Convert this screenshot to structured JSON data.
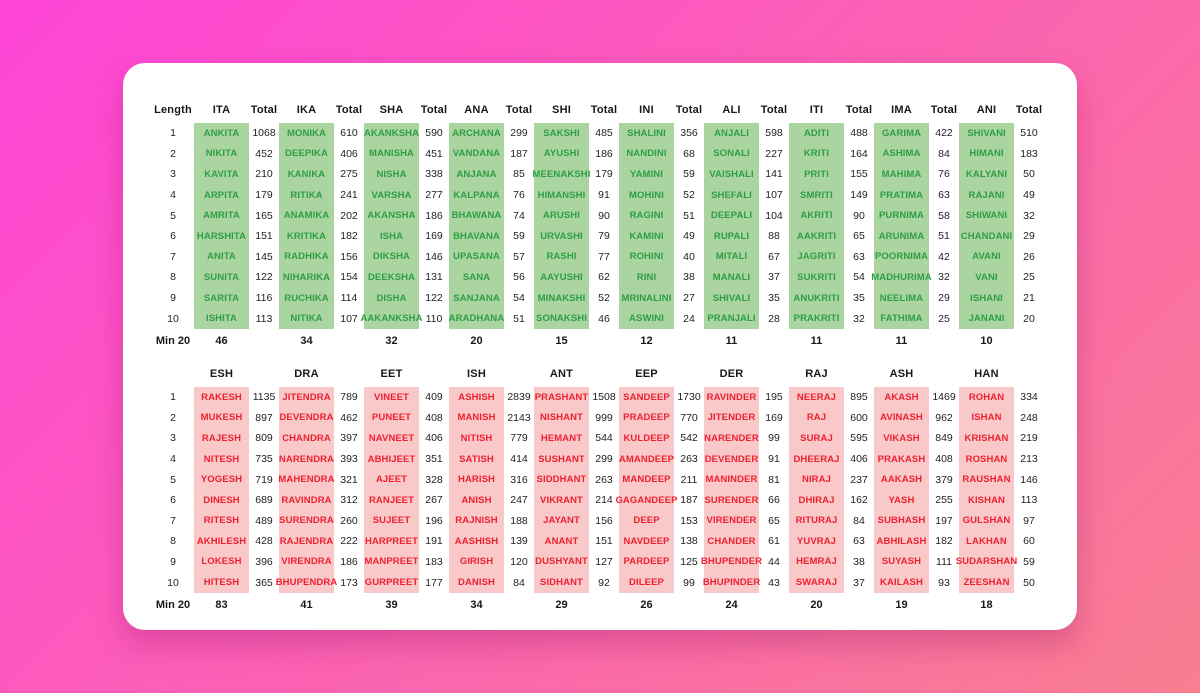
{
  "colors": {
    "background_gradient_start": "#fe44d8",
    "background_gradient_end": "#f97e90",
    "card_background": "#ffffff",
    "female_text": "#2e9e44",
    "female_band": "#aad5a1",
    "male_text": "#ee2130",
    "male_band": "#f9c8c9"
  },
  "labels": {
    "length_header": "Length",
    "total_header": "Total",
    "min_label": "Min 20",
    "row_numbers": [
      "1",
      "2",
      "3",
      "4",
      "5",
      "6",
      "7",
      "8",
      "9",
      "10"
    ]
  },
  "chart_data": [
    {
      "type": "table",
      "suffix_groups": [
        {
          "suffix": "ITA",
          "names": [
            "ANKITA",
            "NIKITA",
            "KAVITA",
            "ARPITA",
            "AMRITA",
            "HARSHITA",
            "ANITA",
            "SUNITA",
            "SARITA",
            "ISHITA"
          ],
          "totals": [
            "1068",
            "452",
            "210",
            "179",
            "165",
            "151",
            "145",
            "122",
            "116",
            "113"
          ],
          "min20": "46"
        },
        {
          "suffix": "IKA",
          "names": [
            "MONIKA",
            "DEEPIKA",
            "KANIKA",
            "RITIKA",
            "ANAMIKA",
            "KRITIKA",
            "RADHIKA",
            "NIHARIKA",
            "RUCHIKA",
            "NITIKA"
          ],
          "totals": [
            "610",
            "406",
            "275",
            "241",
            "202",
            "182",
            "156",
            "154",
            "114",
            "107"
          ],
          "min20": "34"
        },
        {
          "suffix": "SHA",
          "names": [
            "AKANKSHA",
            "MANISHA",
            "NISHA",
            "VARSHA",
            "AKANSHA",
            "ISHA",
            "DIKSHA",
            "DEEKSHA",
            "DISHA",
            "AAKANKSHA"
          ],
          "totals": [
            "590",
            "451",
            "338",
            "277",
            "186",
            "169",
            "146",
            "131",
            "122",
            "110"
          ],
          "min20": "32"
        },
        {
          "suffix": "ANA",
          "names": [
            "ARCHANA",
            "VANDANA",
            "ANJANA",
            "KALPANA",
            "BHAWANA",
            "BHAVANA",
            "UPASANA",
            "SANA",
            "SANJANA",
            "ARADHANA"
          ],
          "totals": [
            "299",
            "187",
            "85",
            "76",
            "74",
            "59",
            "57",
            "56",
            "54",
            "51"
          ],
          "min20": "20"
        },
        {
          "suffix": "SHI",
          "names": [
            "SAKSHI",
            "AYUSHI",
            "MEENAKSHI",
            "HIMANSHI",
            "ARUSHI",
            "URVASHI",
            "RASHI",
            "AAYUSHI",
            "MINAKSHI",
            "SONAKSHI"
          ],
          "totals": [
            "485",
            "186",
            "179",
            "91",
            "90",
            "79",
            "77",
            "62",
            "52",
            "46"
          ],
          "min20": "15"
        },
        {
          "suffix": "INI",
          "names": [
            "SHALINI",
            "NANDINI",
            "YAMINI",
            "MOHINI",
            "RAGINI",
            "KAMINI",
            "ROHINI",
            "RINI",
            "MRINALINI",
            "ASWINI"
          ],
          "totals": [
            "356",
            "68",
            "59",
            "52",
            "51",
            "49",
            "40",
            "38",
            "27",
            "24"
          ],
          "min20": "12"
        },
        {
          "suffix": "ALI",
          "names": [
            "ANJALI",
            "SONALI",
            "VAISHALI",
            "SHEFALI",
            "DEEPALI",
            "RUPALI",
            "MITALI",
            "MANALI",
            "SHIVALI",
            "PRANJALI"
          ],
          "totals": [
            "598",
            "227",
            "141",
            "107",
            "104",
            "88",
            "67",
            "37",
            "35",
            "28"
          ],
          "min20": "11"
        },
        {
          "suffix": "ITI",
          "names": [
            "ADITI",
            "KRITI",
            "PRITI",
            "SMRITI",
            "AKRITI",
            "AAKRITI",
            "JAGRITI",
            "SUKRITI",
            "ANUKRITI",
            "PRAKRITI"
          ],
          "totals": [
            "488",
            "164",
            "155",
            "149",
            "90",
            "65",
            "63",
            "54",
            "35",
            "32"
          ],
          "min20": "11"
        },
        {
          "suffix": "IMA",
          "names": [
            "GARIMA",
            "ASHIMA",
            "MAHIMA",
            "PRATIMA",
            "PURNIMA",
            "ARUNIMA",
            "POORNIMA",
            "MADHURIMA",
            "NEELIMA",
            "FATHIMA"
          ],
          "totals": [
            "422",
            "84",
            "76",
            "63",
            "58",
            "51",
            "42",
            "32",
            "29",
            "25"
          ],
          "min20": "11"
        },
        {
          "suffix": "ANI",
          "names": [
            "SHIVANI",
            "HIMANI",
            "KALYANI",
            "RAJANI",
            "SHIWANI",
            "CHANDANI",
            "AVANI",
            "VANI",
            "ISHANI",
            "JANANI"
          ],
          "totals": [
            "510",
            "183",
            "50",
            "49",
            "32",
            "29",
            "26",
            "25",
            "21",
            "20"
          ],
          "min20": "10"
        }
      ]
    },
    {
      "type": "table",
      "suffix_groups": [
        {
          "suffix": "ESH",
          "names": [
            "RAKESH",
            "MUKESH",
            "RAJESH",
            "NITESH",
            "YOGESH",
            "DINESH",
            "RITESH",
            "AKHILESH",
            "LOKESH",
            "HITESH"
          ],
          "totals": [
            "1135",
            "897",
            "809",
            "735",
            "719",
            "689",
            "489",
            "428",
            "396",
            "365"
          ],
          "min20": "83"
        },
        {
          "suffix": "DRA",
          "names": [
            "JITENDRA",
            "DEVENDRA",
            "CHANDRA",
            "NARENDRA",
            "MAHENDRA",
            "RAVINDRA",
            "SURENDRA",
            "RAJENDRA",
            "VIRENDRA",
            "BHUPENDRA"
          ],
          "totals": [
            "789",
            "462",
            "397",
            "393",
            "321",
            "312",
            "260",
            "222",
            "186",
            "173"
          ],
          "min20": "41"
        },
        {
          "suffix": "EET",
          "names": [
            "VINEET",
            "PUNEET",
            "NAVNEET",
            "ABHIJEET",
            "AJEET",
            "RANJEET",
            "SUJEET",
            "HARPREET",
            "MANPREET",
            "GURPREET"
          ],
          "totals": [
            "409",
            "408",
            "406",
            "351",
            "328",
            "267",
            "196",
            "191",
            "183",
            "177"
          ],
          "min20": "39"
        },
        {
          "suffix": "ISH",
          "names": [
            "ASHISH",
            "MANISH",
            "NITISH",
            "SATISH",
            "HARISH",
            "ANISH",
            "RAJNISH",
            "AASHISH",
            "GIRISH",
            "DANISH"
          ],
          "totals": [
            "2839",
            "2143",
            "779",
            "414",
            "316",
            "247",
            "188",
            "139",
            "120",
            "84"
          ],
          "min20": "34"
        },
        {
          "suffix": "ANT",
          "names": [
            "PRASHANT",
            "NISHANT",
            "HEMANT",
            "SUSHANT",
            "SIDDHANT",
            "VIKRANT",
            "JAYANT",
            "ANANT",
            "DUSHYANT",
            "SIDHANT"
          ],
          "totals": [
            "1508",
            "999",
            "544",
            "299",
            "263",
            "214",
            "156",
            "151",
            "127",
            "92"
          ],
          "min20": "29"
        },
        {
          "suffix": "EEP",
          "names": [
            "SANDEEP",
            "PRADEEP",
            "KULDEEP",
            "AMANDEEP",
            "MANDEEP",
            "GAGANDEEP",
            "DEEP",
            "NAVDEEP",
            "PARDEEP",
            "DILEEP"
          ],
          "totals": [
            "1730",
            "770",
            "542",
            "263",
            "211",
            "187",
            "153",
            "138",
            "125",
            "99"
          ],
          "min20": "26"
        },
        {
          "suffix": "DER",
          "names": [
            "RAVINDER",
            "JITENDER",
            "NARENDER",
            "DEVENDER",
            "MANINDER",
            "SURENDER",
            "VIRENDER",
            "CHANDER",
            "BHUPENDER",
            "BHUPINDER"
          ],
          "totals": [
            "195",
            "169",
            "99",
            "91",
            "81",
            "66",
            "65",
            "61",
            "44",
            "43"
          ],
          "min20": "24"
        },
        {
          "suffix": "RAJ",
          "names": [
            "NEERAJ",
            "RAJ",
            "SURAJ",
            "DHEERAJ",
            "NIRAJ",
            "DHIRAJ",
            "RITURAJ",
            "YUVRAJ",
            "HEMRAJ",
            "SWARAJ"
          ],
          "totals": [
            "895",
            "600",
            "595",
            "406",
            "237",
            "162",
            "84",
            "63",
            "38",
            "37"
          ],
          "min20": "20"
        },
        {
          "suffix": "ASH",
          "names": [
            "AKASH",
            "AVINASH",
            "VIKASH",
            "PRAKASH",
            "AAKASH",
            "YASH",
            "SUBHASH",
            "ABHILASH",
            "SUYASH",
            "KAILASH"
          ],
          "totals": [
            "1469",
            "962",
            "849",
            "408",
            "379",
            "255",
            "197",
            "182",
            "111",
            "93"
          ],
          "min20": "19"
        },
        {
          "suffix": "HAN",
          "names": [
            "ROHAN",
            "ISHAN",
            "KRISHAN",
            "ROSHAN",
            "RAUSHAN",
            "KISHAN",
            "GULSHAN",
            "LAKHAN",
            "SUDARSHAN",
            "ZEESHAN"
          ],
          "totals": [
            "334",
            "248",
            "219",
            "213",
            "146",
            "113",
            "97",
            "60",
            "59",
            "50"
          ],
          "min20": "18"
        }
      ]
    }
  ]
}
